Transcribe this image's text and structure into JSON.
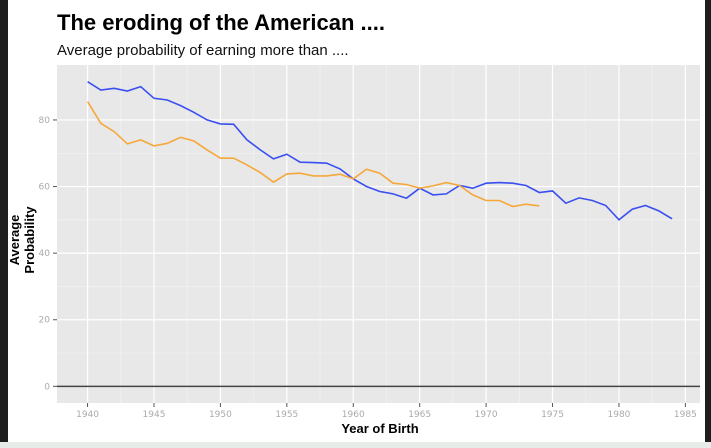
{
  "chart_data": {
    "type": "line",
    "title": "The eroding of the American ....",
    "subtitle": "Average probability of earning more than ....",
    "xlabel": "Year of Birth",
    "ylabel": "Average Probability",
    "xlim": [
      1937.7,
      1986.1
    ],
    "ylim": [
      -5,
      96.5
    ],
    "xticks": [
      1940,
      1945,
      1950,
      1955,
      1960,
      1965,
      1970,
      1975,
      1980,
      1985
    ],
    "yticks": [
      0,
      20,
      40,
      60,
      80
    ],
    "grid": true,
    "hline": 0,
    "series": [
      {
        "color": "#3a4ff0",
        "x": [
          1940,
          1941,
          1942,
          1943,
          1944,
          1945,
          1946,
          1947,
          1948,
          1949,
          1950,
          1951,
          1952,
          1953,
          1954,
          1955,
          1956,
          1957,
          1958,
          1959,
          1960,
          1961,
          1962,
          1963,
          1964,
          1965,
          1966,
          1967,
          1968,
          1969,
          1970,
          1971,
          1972,
          1973,
          1974,
          1975,
          1976,
          1977,
          1978,
          1979,
          1980,
          1981,
          1982,
          1983,
          1984
        ],
        "values": [
          91.5,
          89,
          89.5,
          88.7,
          90,
          86.5,
          86,
          84.3,
          82.3,
          80,
          78.8,
          78.7,
          74,
          71,
          68.3,
          69.7,
          67.3,
          67.2,
          67,
          65.3,
          62.3,
          60,
          58.5,
          57.8,
          56.5,
          59.5,
          57.5,
          57.8,
          60.3,
          59.5,
          61,
          61.2,
          61,
          60.3,
          58.2,
          58.7,
          55,
          56.6,
          55.8,
          54.3,
          50,
          53.2,
          54.3,
          52.7,
          50.3
        ]
      },
      {
        "color": "#f5a83a",
        "x": [
          1940,
          1941,
          1942,
          1943,
          1944,
          1945,
          1946,
          1947,
          1948,
          1949,
          1950,
          1951,
          1952,
          1953,
          1954,
          1955,
          1956,
          1957,
          1958,
          1959,
          1960,
          1961,
          1962,
          1963,
          1964,
          1965,
          1966,
          1967,
          1968,
          1969,
          1970,
          1971,
          1972,
          1973,
          1974
        ],
        "values": [
          85.5,
          79,
          76.5,
          72.8,
          74,
          72.2,
          73,
          74.8,
          73.7,
          71,
          68.5,
          68.5,
          66.5,
          64.2,
          61.3,
          63.8,
          64,
          63.2,
          63.2,
          63.7,
          62.3,
          65.2,
          64,
          61,
          60.6,
          59.5,
          60.2,
          61.2,
          60.3,
          57.5,
          55.8,
          55.8,
          54,
          54.7,
          54.2
        ]
      }
    ]
  }
}
